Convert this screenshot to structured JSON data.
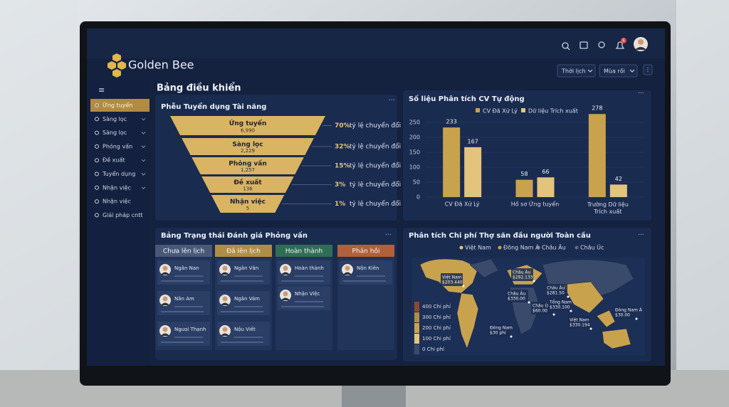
{
  "app": {
    "brand": "Golden Bee",
    "page_title": "Bảng điều khiển",
    "buttons": [
      "Thời lịch",
      "Mùa rồi"
    ],
    "notification_count": "6"
  },
  "sidebar": {
    "items": [
      "Ứng tuyển",
      "Sàng lọc",
      "Sàng lọc",
      "Phỏng vấn",
      "Đề xuất",
      "Tuyển dụng",
      "Nhận việc",
      "Nhận việc",
      "Giải pháp cntt"
    ]
  },
  "chart_data": [
    {
      "type": "funnel",
      "title": "Phễu Tuyển dụng Tài năng",
      "categories": [
        "Ứng tuyển",
        "Sàng lọc",
        "Phỏng vấn",
        "Đề xuất",
        "Nhận việc"
      ],
      "values": [
        6990,
        2229,
        1257,
        136,
        5
      ],
      "value_labels": [
        "6,990",
        "2,229",
        "1,257",
        "136",
        "5"
      ],
      "rate_labels": [
        "70%",
        "32%",
        "15%",
        "3%",
        "1%"
      ],
      "rate_text": "tỷ lệ chuyển đổi",
      "color": "#d9b463"
    },
    {
      "type": "bar",
      "title": "Số liệu Phân tích CV Tự động",
      "categories": [
        "CV Đã Xử Lý",
        "Hồ sơ Ứng tuyển",
        "Trường Dữ liệu Trích xuất"
      ],
      "series": [
        {
          "name": "CV Đã Xử Lý",
          "color": "#c9a24e",
          "values": [
            233,
            58,
            278
          ]
        },
        {
          "name": "Dữ liệu Trích xuất",
          "color": "#e3c47c",
          "values": [
            167,
            66,
            42
          ]
        }
      ],
      "ylim": [
        0,
        300
      ],
      "yticks": [
        0,
        50,
        100,
        150,
        200,
        250
      ],
      "legend": "top"
    }
  ],
  "kanban": {
    "title": "Bảng Trạng thái Đánh giá Phỏng vấn",
    "columns": [
      {
        "title": "Chưa lên lịch",
        "cards": [
          "Ngân Nan",
          "Nân Am",
          "Nguọi Thạnh"
        ]
      },
      {
        "title": "Đã lên lịch",
        "cards": [
          "Ngân Văn",
          "Ngân Vám",
          "Nộu Viết"
        ]
      },
      {
        "title": "Hoàn thành",
        "cards": [
          "Hoàn thành",
          "Nhận Việc"
        ]
      },
      {
        "title": "Phản hồi",
        "cards": [
          "Nộn Kiên"
        ]
      }
    ]
  },
  "map": {
    "title": "Phân tích Chi phí Thợ săn đầu người Toàn cầu",
    "legend": [
      "Việt Nam",
      "Đông Nam Á",
      "Châu Âu",
      "Châu Úc"
    ],
    "scale": [
      "400 Chi phí",
      "300 Chi phí",
      "200 Chi phí",
      "100 Chi phí",
      "0 Chi phí"
    ],
    "regions": [
      {
        "name": "Việt Nam",
        "amount": "$203.440"
      },
      {
        "name": "Châu Âu",
        "amount": "$292.133"
      },
      {
        "name": "Châu Âu",
        "amount": "$281.50"
      },
      {
        "name": "Châu Âu",
        "amount": "$330.00"
      },
      {
        "name": "Châu Úc",
        "amount": "$60.00"
      },
      {
        "name": "Tổng Nam",
        "amount": "$330.100"
      },
      {
        "name": "Đông Nam Á",
        "amount": "$30.00"
      },
      {
        "name": "Việt Nam",
        "amount": "$330.194"
      },
      {
        "name": "Đông Nam",
        "amount": "$30 phí"
      }
    ]
  }
}
